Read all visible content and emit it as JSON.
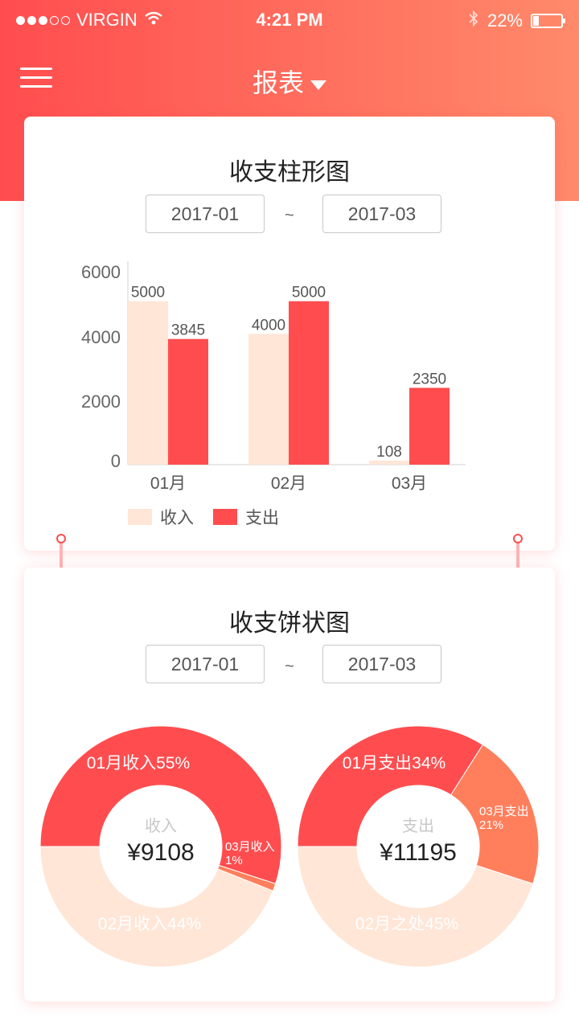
{
  "status_bar": {
    "carrier": "VIRGIN",
    "time": "4:21 PM",
    "battery": "22%",
    "battery_level": 0.22
  },
  "nav": {
    "title": "报表",
    "menu_icon": "hamburger-menu-icon",
    "dropdown_icon": "caret-down-icon"
  },
  "bar_card": {
    "title": "收支柱形图",
    "date_from": "2017-01",
    "date_to": "2017-03",
    "separator": "~",
    "legend": [
      "收入",
      "支出"
    ]
  },
  "pie_card": {
    "title": "收支饼状图",
    "date_from": "2017-01",
    "date_to": "2017-03",
    "separator": "~",
    "income": {
      "label": "收入",
      "total": "¥9108"
    },
    "expense": {
      "label": "支出",
      "total": "¥11195"
    }
  },
  "colors": {
    "income": "#ffe6d7",
    "expense": "#ff4d4f",
    "accent": "#ff7f5c"
  },
  "chart_data": [
    {
      "type": "bar",
      "categories": [
        "01月",
        "02月",
        "03月"
      ],
      "series": [
        {
          "name": "收入",
          "values": [
            5000,
            4000,
            108
          ]
        },
        {
          "name": "支出",
          "values": [
            3845,
            5000,
            2350
          ]
        }
      ],
      "yticks": [
        "0",
        "2000",
        "4000",
        "6000"
      ],
      "ylim": [
        0,
        6000
      ],
      "legend_position": "bottom-left"
    },
    {
      "type": "pie",
      "center_label": "收入",
      "center_value": "¥9108",
      "slices": [
        {
          "label": "01月收入55%",
          "value": 55
        },
        {
          "label": "03月收入1%",
          "value": 1
        },
        {
          "label": "02月收入44%",
          "value": 44
        }
      ]
    },
    {
      "type": "pie",
      "center_label": "支出",
      "center_value": "¥11195",
      "slices": [
        {
          "label": "01月支出34%",
          "value": 34
        },
        {
          "label": "03月支出21%",
          "value": 21
        },
        {
          "label": "02月之处45%",
          "value": 45
        }
      ]
    }
  ]
}
